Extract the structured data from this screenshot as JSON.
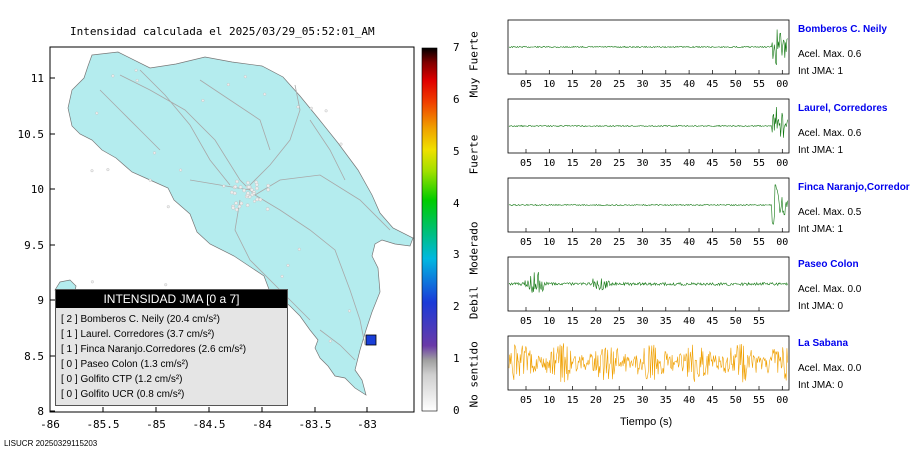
{
  "map": {
    "title": "Intensidad calculada el 2025/03/29_05:52:01_AM",
    "x_ticks": [
      "-86",
      "-85.5",
      "-85",
      "-84.5",
      "-84",
      "-83.5",
      "-83"
    ],
    "y_ticks": [
      "11",
      "10.5",
      "10",
      "9.5",
      "9",
      "8.5",
      "8"
    ],
    "land_color": "#b4ecee",
    "marker_color": "#1a3fd8"
  },
  "colorbar": {
    "ticks": [
      "7",
      "6",
      "5",
      "4",
      "3",
      "2",
      "1",
      "0"
    ],
    "labels": [
      "Muy Fuerte",
      "Fuerte",
      "Moderado",
      "Debil",
      "No sentido"
    ]
  },
  "legend": {
    "title": "INTENSIDAD JMA [0 a 7]",
    "rows": [
      "[ 2 ]  Bomberos C. Neily (20.4 cm/s²)",
      "[ 1 ]  Laurel. Corredores (3.7 cm/s²)",
      "[ 1 ]  Finca Naranjo.Corredores (2.6 cm/s²)",
      "[ 0 ]  Paseo Colon (1.3 cm/s²)",
      "[ 0 ]  Golfito CTP (1.2 cm/s²)",
      "[ 0 ]  Golfito UCR (0.8 cm/s²)"
    ]
  },
  "stations": [
    {
      "name": "Bomberos C. Neily",
      "accel": "Acel. Max. 0.6",
      "jma": "Int JMA: 1",
      "color": "#117711",
      "ticks": [
        "05",
        "10",
        "15",
        "20",
        "25",
        "30",
        "35",
        "40",
        "45",
        "50",
        "55",
        "00"
      ],
      "pattern": "late"
    },
    {
      "name": "Laurel, Corredores",
      "accel": "Acel. Max. 0.6",
      "jma": "Int JMA: 1",
      "color": "#117711",
      "ticks": [
        "05",
        "10",
        "15",
        "20",
        "25",
        "30",
        "35",
        "40",
        "45",
        "50",
        "55",
        "00"
      ],
      "pattern": "late"
    },
    {
      "name": "Finca Naranjo,Corredores",
      "accel": "Acel. Max. 0.5",
      "jma": "Int JMA: 1",
      "color": "#117711",
      "ticks": [
        "05",
        "10",
        "15",
        "20",
        "25",
        "30",
        "35",
        "40",
        "45",
        "50",
        "55",
        "00"
      ],
      "pattern": "late"
    },
    {
      "name": "Paseo Colon",
      "accel": "Acel. Max. 0.0",
      "jma": "Int JMA: 0",
      "color": "#117711",
      "ticks": [
        "05",
        "10",
        "15",
        "20",
        "25",
        "30",
        "35",
        "40",
        "45",
        "50",
        "55"
      ],
      "pattern": "early"
    },
    {
      "name": "La Sabana",
      "accel": "Acel. Max. 0.0",
      "jma": "Int JMA: 0",
      "color": "#f0a000",
      "ticks": [
        "05",
        "10",
        "15",
        "20",
        "25",
        "30",
        "35",
        "40",
        "45",
        "50",
        "55",
        "00"
      ],
      "pattern": "noise"
    }
  ],
  "xlabel": "Tiempo (s)",
  "footer": "LISUCR 20250329115203"
}
